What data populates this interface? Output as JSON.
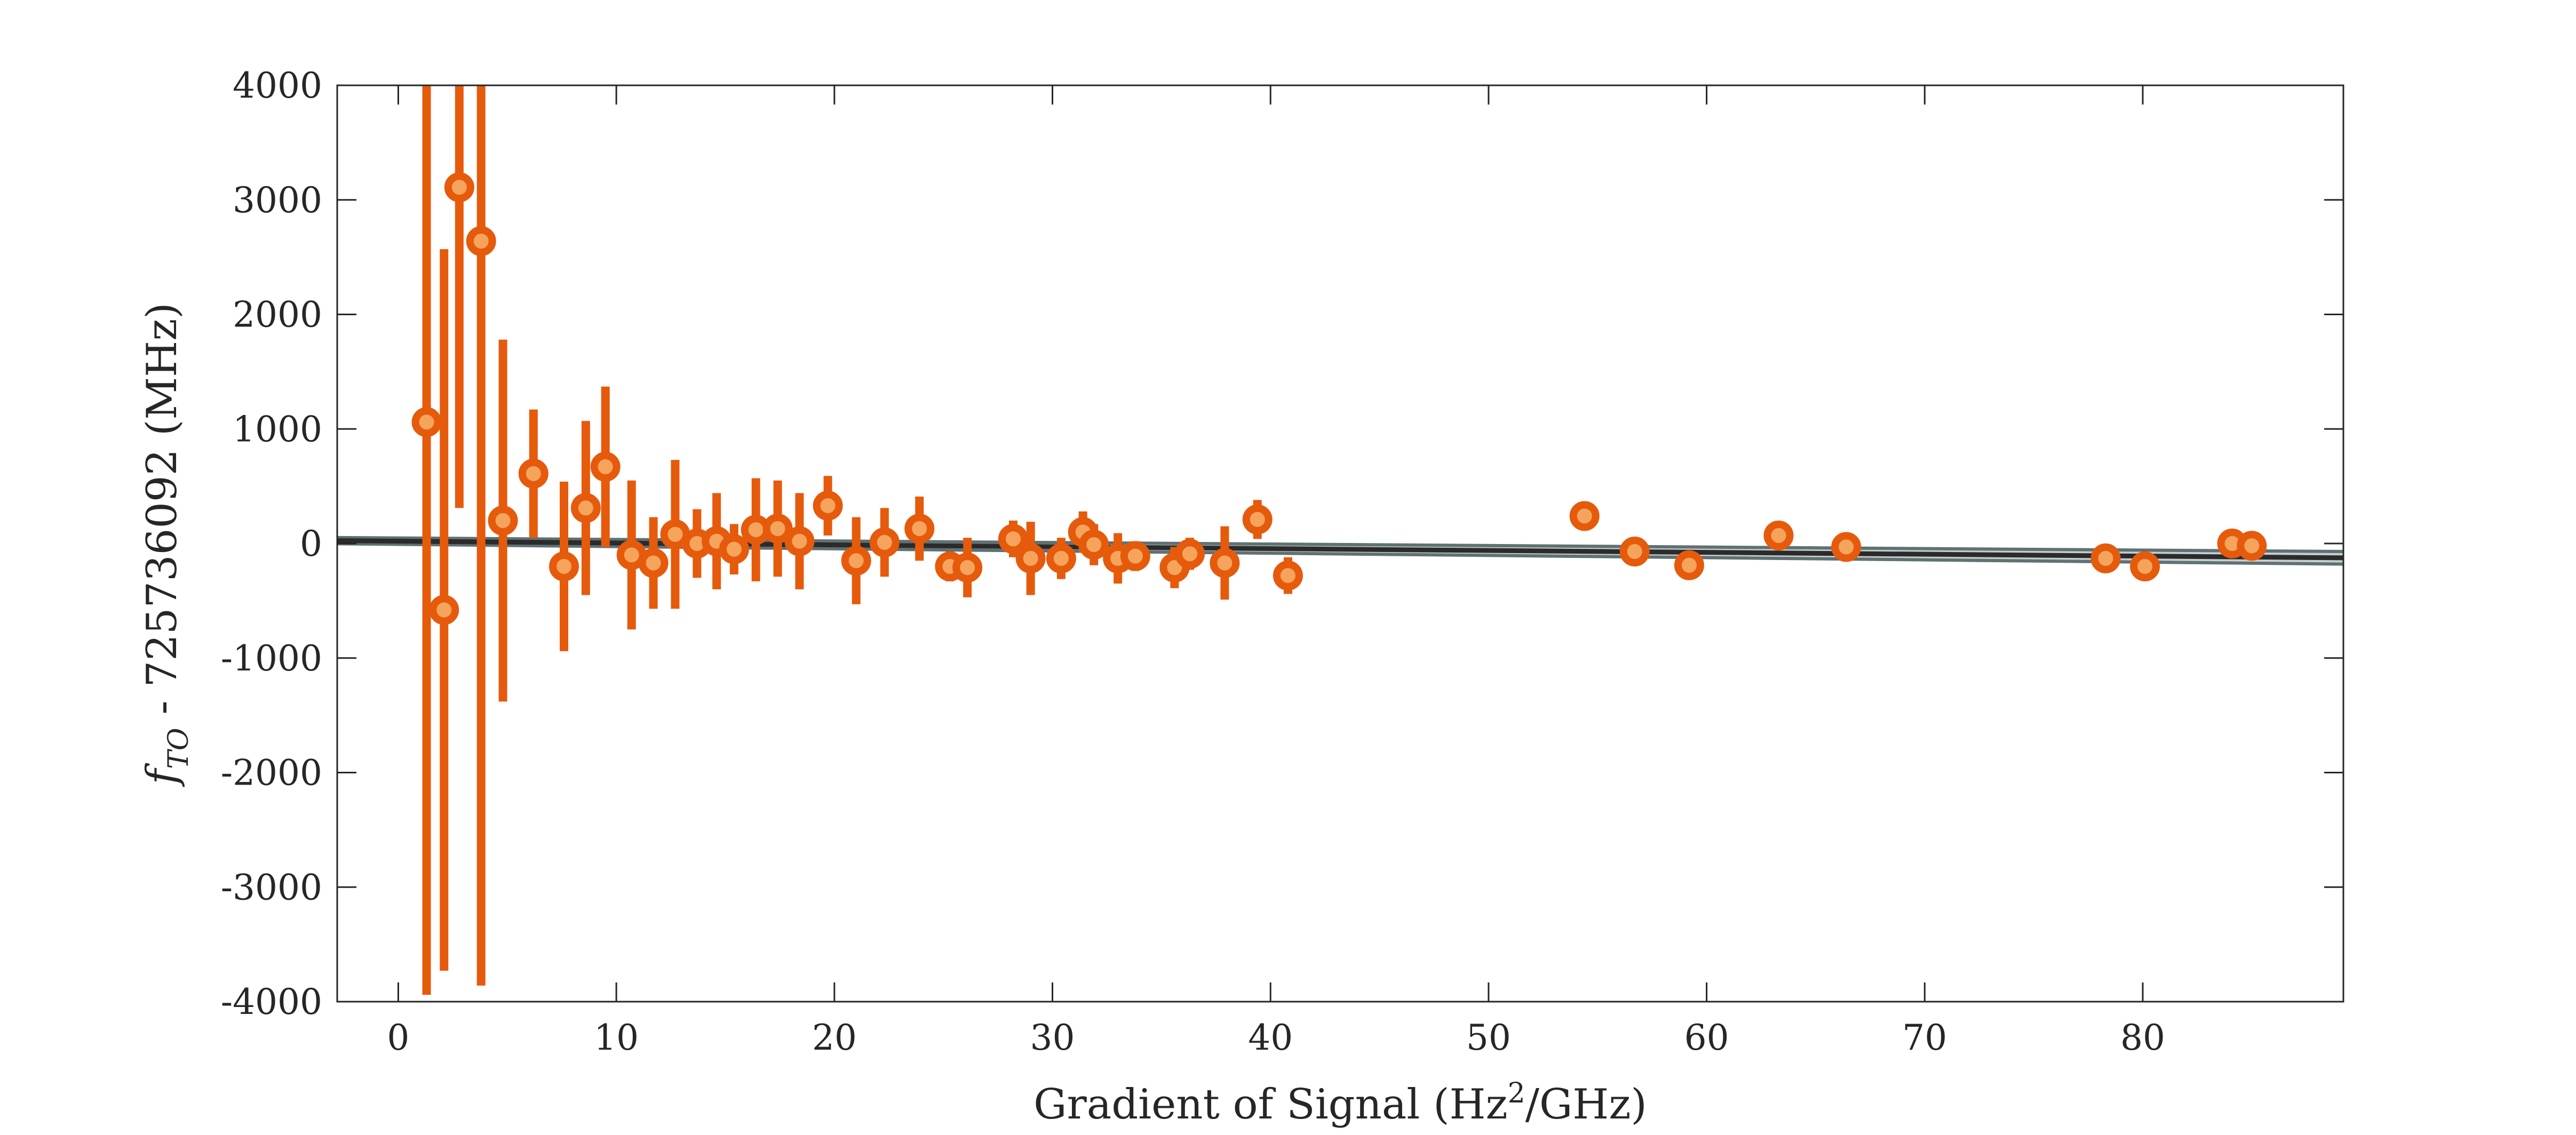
{
  "chart_data": {
    "type": "scatter",
    "title": "",
    "xlabel": {
      "prefix": "Gradient of Signal (Hz",
      "superscript": "2",
      "suffix": "/GHz)"
    },
    "ylabel": {
      "symbol": "f",
      "subscript": "TO",
      "rest": " - 725736092 (MHz)"
    },
    "xlim": [
      -2.8,
      89.2
    ],
    "ylim": [
      -4000,
      4000
    ],
    "xticks": [
      0,
      10,
      20,
      30,
      40,
      50,
      60,
      70,
      80
    ],
    "yticks": [
      -4000,
      -3000,
      -2000,
      -1000,
      0,
      1000,
      2000,
      3000,
      4000
    ],
    "xtick_labels": [
      "0",
      "10",
      "20",
      "30",
      "40",
      "50",
      "60",
      "70",
      "80"
    ],
    "ytick_labels": [
      "-4000",
      "-3000",
      "-2000",
      "-1000",
      "0",
      "1000",
      "2000",
      "3000",
      "4000"
    ],
    "grid": false,
    "legend": "none",
    "colors": {
      "points": "#e65a0c",
      "point_center": "#f6a45c",
      "fit_line": "#2b2b2b",
      "fit_band": "#5f7173",
      "axes": "#262626"
    },
    "fit": {
      "x": [
        -2.8,
        89.2
      ],
      "y": [
        25,
        -125
      ],
      "band_halfwidth": [
        27,
        55
      ]
    },
    "series": [
      {
        "x": [
          1.3,
          2.1,
          2.8,
          3.8,
          4.8,
          6.2,
          7.6,
          8.6,
          9.5,
          10.7,
          11.7,
          12.7,
          13.7,
          14.6,
          15.4,
          16.4,
          17.4,
          18.4,
          19.7,
          21.0,
          22.3,
          23.9,
          25.3,
          26.1,
          28.2,
          29.0,
          30.4,
          31.4,
          31.9,
          33.0,
          33.8,
          35.6,
          36.3,
          37.9,
          39.4,
          40.8,
          54.4,
          56.7,
          59.2,
          63.3,
          66.4,
          78.3,
          80.1,
          84.1,
          85.0
        ],
        "y": [
          1060,
          -580,
          3110,
          2640,
          200,
          610,
          -200,
          310,
          670,
          -100,
          -170,
          80,
          0,
          20,
          -50,
          120,
          130,
          20,
          330,
          -150,
          10,
          130,
          -200,
          -210,
          40,
          -130,
          -130,
          100,
          -10,
          -130,
          -110,
          -210,
          -90,
          -170,
          210,
          -280,
          240,
          -70,
          -190,
          70,
          -30,
          -130,
          -200,
          0,
          -20
        ],
        "yerr": [
          5000,
          3150,
          2800,
          6500,
          1580,
          560,
          740,
          760,
          700,
          650,
          400,
          650,
          300,
          420,
          220,
          450,
          420,
          420,
          260,
          380,
          300,
          280,
          130,
          260,
          160,
          320,
          180,
          180,
          180,
          220,
          130,
          180,
          140,
          320,
          170,
          160,
          100,
          80,
          100,
          120,
          70,
          80,
          70,
          120,
          120
        ]
      }
    ]
  }
}
